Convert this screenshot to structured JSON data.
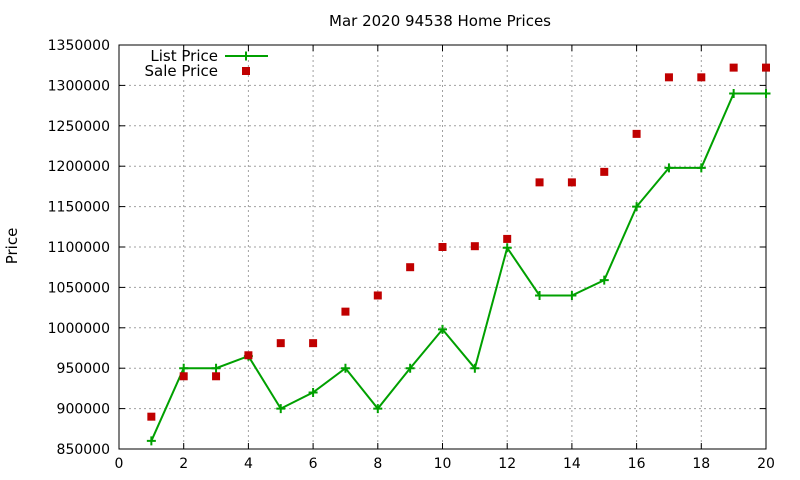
{
  "chart_data": {
    "type": "line",
    "title": "Mar 2020 94538 Home Prices",
    "xlabel": "",
    "ylabel": "Price",
    "xlim": [
      0,
      20
    ],
    "ylim": [
      850000,
      1350000
    ],
    "xticks": [
      0,
      2,
      4,
      6,
      8,
      10,
      12,
      14,
      16,
      18,
      20
    ],
    "yticks": [
      850000,
      900000,
      950000,
      1000000,
      1050000,
      1100000,
      1150000,
      1200000,
      1250000,
      1300000,
      1350000
    ],
    "grid": true,
    "legend_position": "top-left",
    "series": [
      {
        "name": "List Price",
        "style": "lines+points",
        "color": "#00a000",
        "marker": "plus",
        "x": [
          1,
          2,
          3,
          4,
          5,
          6,
          7,
          8,
          9,
          10,
          11,
          12,
          13,
          14,
          15,
          16,
          17,
          18,
          19,
          20
        ],
        "y": [
          860000,
          950000,
          950000,
          965000,
          900000,
          920000,
          950000,
          900000,
          950000,
          998000,
          950000,
          1099000,
          1040000,
          1040000,
          1059000,
          1150000,
          1198000,
          1198000,
          1290000,
          1290000
        ]
      },
      {
        "name": "Sale Price",
        "style": "points",
        "color": "#c00000",
        "marker": "square",
        "x": [
          1,
          2,
          3,
          4,
          5,
          6,
          7,
          8,
          9,
          10,
          11,
          12,
          13,
          14,
          15,
          16,
          17,
          18,
          19,
          20
        ],
        "y": [
          890000,
          940000,
          940000,
          966000,
          981000,
          981000,
          1020000,
          1040000,
          1075000,
          1100000,
          1101000,
          1110000,
          1180000,
          1180000,
          1193000,
          1240000,
          1310000,
          1310000,
          1322000,
          1322000
        ]
      }
    ]
  }
}
